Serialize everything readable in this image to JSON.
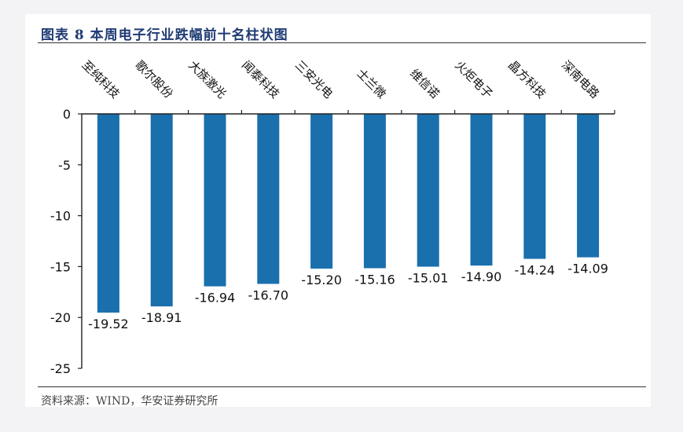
{
  "title": "图表 8  本周电子行业跌幅前十名柱状图",
  "source": "资料来源：WIND，华安证券研究所",
  "chart_data": {
    "type": "bar",
    "categories": [
      "至纯科技",
      "歌尔股份",
      "大族激光",
      "闻泰科技",
      "三安光电",
      "士兰微",
      "维信诺",
      "火炬电子",
      "晶方科技",
      "深南电路"
    ],
    "values": [
      -19.52,
      -18.91,
      -16.94,
      -16.7,
      -15.2,
      -15.16,
      -15.01,
      -14.9,
      -14.24,
      -14.09
    ],
    "value_labels": [
      "-19.52",
      "-18.91",
      "-16.94",
      "-16.70",
      "-15.20",
      "-15.16",
      "-15.01",
      "-14.90",
      "-14.24",
      "-14.09"
    ],
    "ylim": [
      -25,
      0
    ],
    "yticks": [
      0,
      -5,
      -10,
      -15,
      -20,
      -25
    ],
    "ytick_labels": [
      "0",
      "-5",
      "-10",
      "-15",
      "-20",
      "-25"
    ],
    "bar_color": "#1a6fad",
    "xlabel": "",
    "ylabel": "",
    "grid": false,
    "legend": "none"
  }
}
